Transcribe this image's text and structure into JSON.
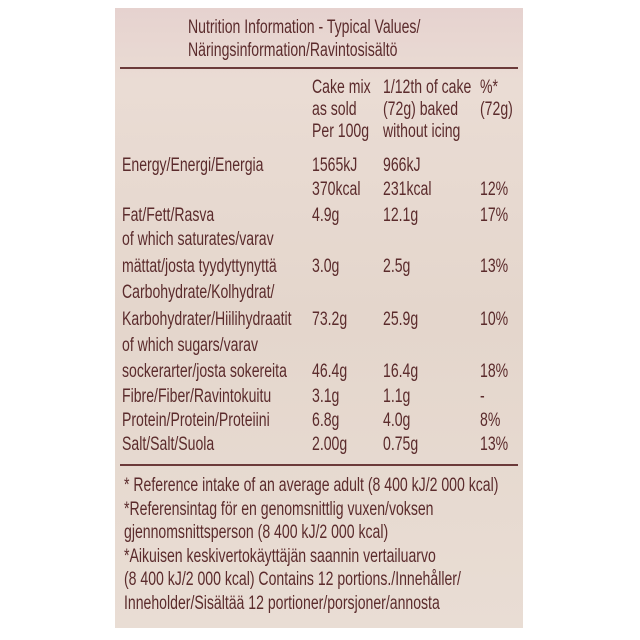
{
  "title": [
    "Nutrition Information - Typical Values/",
    "Näringsinformation/Ravintosisältö"
  ],
  "header": {
    "columns": [
      [
        "Cake mix",
        "as sold",
        "Per 100g"
      ],
      [
        "1/12th of cake",
        "(72g) baked",
        "without icing"
      ],
      [
        "%*",
        "(72g)"
      ]
    ]
  },
  "table": {
    "rows": [
      {
        "label": "Energy/Energi/Energia",
        "mix": "1565kJ",
        "baked": "966kJ"
      },
      {
        "mix": "370kcal",
        "baked": "231kcal",
        "ri": "12%"
      },
      {
        "label": "Fat/Fett/Rasva",
        "mix": "4.9g",
        "baked": "12.1g",
        "ri": "17%"
      },
      {
        "label": "of which saturates/varav"
      },
      {
        "label": "mättat/josta tyydyttynyttä",
        "mix": "3.0g",
        "baked": "2.5g",
        "ri": "13%"
      },
      {
        "label": "Carbohydrate/Kolhydrat/"
      },
      {
        "label": "Karbohydrater/Hiilihydraatit",
        "mix": "73.2g",
        "baked": "25.9g",
        "ri": "10%"
      },
      {
        "label": "of which sugars/varav"
      },
      {
        "label": "sockerarter/josta sokereita",
        "mix": "46.4g",
        "baked": "16.4g",
        "ri": "18%"
      },
      {
        "label": "Fibre/Fiber/Ravintokuitu",
        "mix": "3.1g",
        "baked": "1.1g",
        "ri": "-"
      },
      {
        "label": "Protein/Protein/Proteiini",
        "mix": "6.8g",
        "baked": "4.0g",
        "ri": "8%"
      },
      {
        "label": "Salt/Salt/Suola",
        "mix": "2.00g",
        "baked": "0.75g",
        "ri": "13%"
      }
    ]
  },
  "footnote": [
    "* Reference intake of an average adult (8 400 kJ/2 000 kcal)",
    "*Referensintag för en genomsnittlig vuxen/voksen",
    "gjennomsnittsperson (8 400 kJ/2 000 kcal)",
    "*Aikuisen keskivertokäyttäjän saannin vertailuarvo",
    "(8 400 kJ/2 000 kcal) Contains 12 portions./Innehåller/",
    "Inneholder/Sisältää 12 portioner/porsjoner/annosta"
  ]
}
